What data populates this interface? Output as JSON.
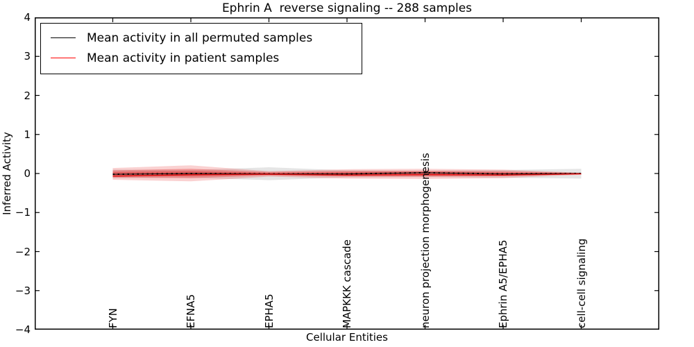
{
  "title": "Ephrin A  reverse signaling -- 288 samples",
  "legend": {
    "items": [
      {
        "label": "Mean activity in all permuted samples",
        "color": "#000000"
      },
      {
        "label": "Mean activity in patient samples",
        "color": "#ff0000"
      }
    ]
  },
  "axes": {
    "ylabel": "Inferred Activity",
    "xlabel": "Cellular Entities",
    "ytick_labels": [
      "4",
      "3",
      "2",
      "1",
      "0",
      "−1",
      "−2",
      "−3",
      "−4"
    ]
  },
  "chart_data": {
    "type": "line",
    "title": "Ephrin A  reverse signaling -- 288 samples",
    "xlabel": "Cellular Entities",
    "ylabel": "Inferred Activity",
    "ylim": [
      -4,
      4
    ],
    "yticks": [
      4,
      3,
      2,
      1,
      0,
      -1,
      -2,
      -3,
      -4
    ],
    "grid": false,
    "legend_position": "upper left",
    "categories": [
      "FYN",
      "EFNA5",
      "EPHA5",
      "MAPKKK cascade",
      "neuron projection morphogenesis",
      "Ephrin A5/EPHA5",
      "cell-cell signaling"
    ],
    "series": [
      {
        "name": "Mean activity in all permuted samples",
        "color": "#000000",
        "style": "solid-with-dashes",
        "values": [
          -0.02,
          0.0,
          -0.01,
          -0.01,
          0.02,
          -0.01,
          0.0
        ]
      },
      {
        "name": "Mean activity in patient samples",
        "color": "#dd1111",
        "style": "solid",
        "values": [
          -0.07,
          -0.03,
          -0.02,
          -0.04,
          -0.03,
          -0.04,
          -0.01
        ]
      }
    ],
    "bands": [
      {
        "name": "permuted-samples-band",
        "fill": "rgba(0,0,0,0.10)",
        "upper": [
          0.1,
          0.09,
          0.16,
          0.08,
          0.07,
          0.09,
          0.12
        ],
        "lower": [
          -0.12,
          -0.11,
          -0.17,
          -0.1,
          -0.09,
          -0.11,
          -0.13
        ]
      },
      {
        "name": "patient-band-outer",
        "fill": "rgba(230,26,26,0.20)",
        "upper": [
          0.14,
          0.21,
          0.06,
          0.11,
          0.12,
          0.1,
          0.02
        ],
        "lower": [
          -0.16,
          -0.2,
          -0.08,
          -0.13,
          -0.14,
          -0.12,
          -0.03
        ]
      },
      {
        "name": "patient-band-mid",
        "fill": "rgba(230,26,26,0.30)",
        "upper": [
          0.08,
          0.12,
          0.04,
          0.07,
          0.07,
          0.06,
          0.015
        ],
        "lower": [
          -0.1,
          -0.12,
          -0.05,
          -0.08,
          -0.08,
          -0.07,
          -0.02
        ]
      },
      {
        "name": "patient-band-core",
        "fill": "rgba(215,20,20,0.35)",
        "upper": [
          0.04,
          0.06,
          0.02,
          0.035,
          0.04,
          0.03,
          0.01
        ],
        "lower": [
          -0.06,
          -0.07,
          -0.03,
          -0.04,
          -0.05,
          -0.04,
          -0.015
        ]
      }
    ]
  }
}
